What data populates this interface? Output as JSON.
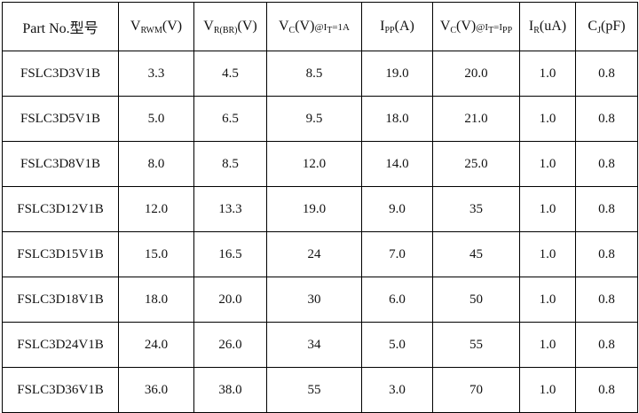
{
  "table": {
    "header": [
      [
        {
          "text": "Part No.型号",
          "style": "normal"
        }
      ],
      [
        {
          "text": "V",
          "style": "normal"
        },
        {
          "text": "RWM",
          "style": "sub"
        },
        {
          "text": "(V)",
          "style": "normal"
        }
      ],
      [
        {
          "text": "V",
          "style": "normal"
        },
        {
          "text": "R(BR)",
          "style": "sub"
        },
        {
          "text": "(V)",
          "style": "normal"
        }
      ],
      [
        {
          "text": "V",
          "style": "normal"
        },
        {
          "text": "C",
          "style": "sub"
        },
        {
          "text": "(V)",
          "style": "normal"
        },
        {
          "text": "@I",
          "style": "small"
        },
        {
          "text": "T",
          "style": "sub"
        },
        {
          "text": "=1A",
          "style": "small"
        }
      ],
      [
        {
          "text": "I",
          "style": "normal"
        },
        {
          "text": "PP",
          "style": "sub"
        },
        {
          "text": "(A)",
          "style": "normal"
        }
      ],
      [
        {
          "text": "V",
          "style": "normal"
        },
        {
          "text": "C",
          "style": "sub"
        },
        {
          "text": "(V)",
          "style": "normal"
        },
        {
          "text": "@I",
          "style": "small"
        },
        {
          "text": "T",
          "style": "sub"
        },
        {
          "text": "=I",
          "style": "small"
        },
        {
          "text": "PP",
          "style": "sub"
        }
      ],
      [
        {
          "text": "I",
          "style": "normal"
        },
        {
          "text": "R",
          "style": "sub"
        },
        {
          "text": "(uA)",
          "style": "normal"
        }
      ],
      [
        {
          "text": "C",
          "style": "normal"
        },
        {
          "text": "J",
          "style": "sub"
        },
        {
          "text": "(pF)",
          "style": "normal"
        }
      ]
    ],
    "rows": [
      [
        "FSLC3D3V1B",
        "3.3",
        "4.5",
        "8.5",
        "19.0",
        "20.0",
        "1.0",
        "0.8"
      ],
      [
        "FSLC3D5V1B",
        "5.0",
        "6.5",
        "9.5",
        "18.0",
        "21.0",
        "1.0",
        "0.8"
      ],
      [
        "FSLC3D8V1B",
        "8.0",
        "8.5",
        "12.0",
        "14.0",
        "25.0",
        "1.0",
        "0.8"
      ],
      [
        "FSLC3D12V1B",
        "12.0",
        "13.3",
        "19.0",
        "9.0",
        "35",
        "1.0",
        "0.8"
      ],
      [
        "FSLC3D15V1B",
        "15.0",
        "16.5",
        "24",
        "7.0",
        "45",
        "1.0",
        "0.8"
      ],
      [
        "FSLC3D18V1B",
        "18.0",
        "20.0",
        "30",
        "6.0",
        "50",
        "1.0",
        "0.8"
      ],
      [
        "FSLC3D24V1B",
        "24.0",
        "26.0",
        "34",
        "5.0",
        "55",
        "1.0",
        "0.8"
      ],
      [
        "FSLC3D36V1B",
        "36.0",
        "38.0",
        "55",
        "3.0",
        "70",
        "1.0",
        "0.8"
      ]
    ]
  }
}
